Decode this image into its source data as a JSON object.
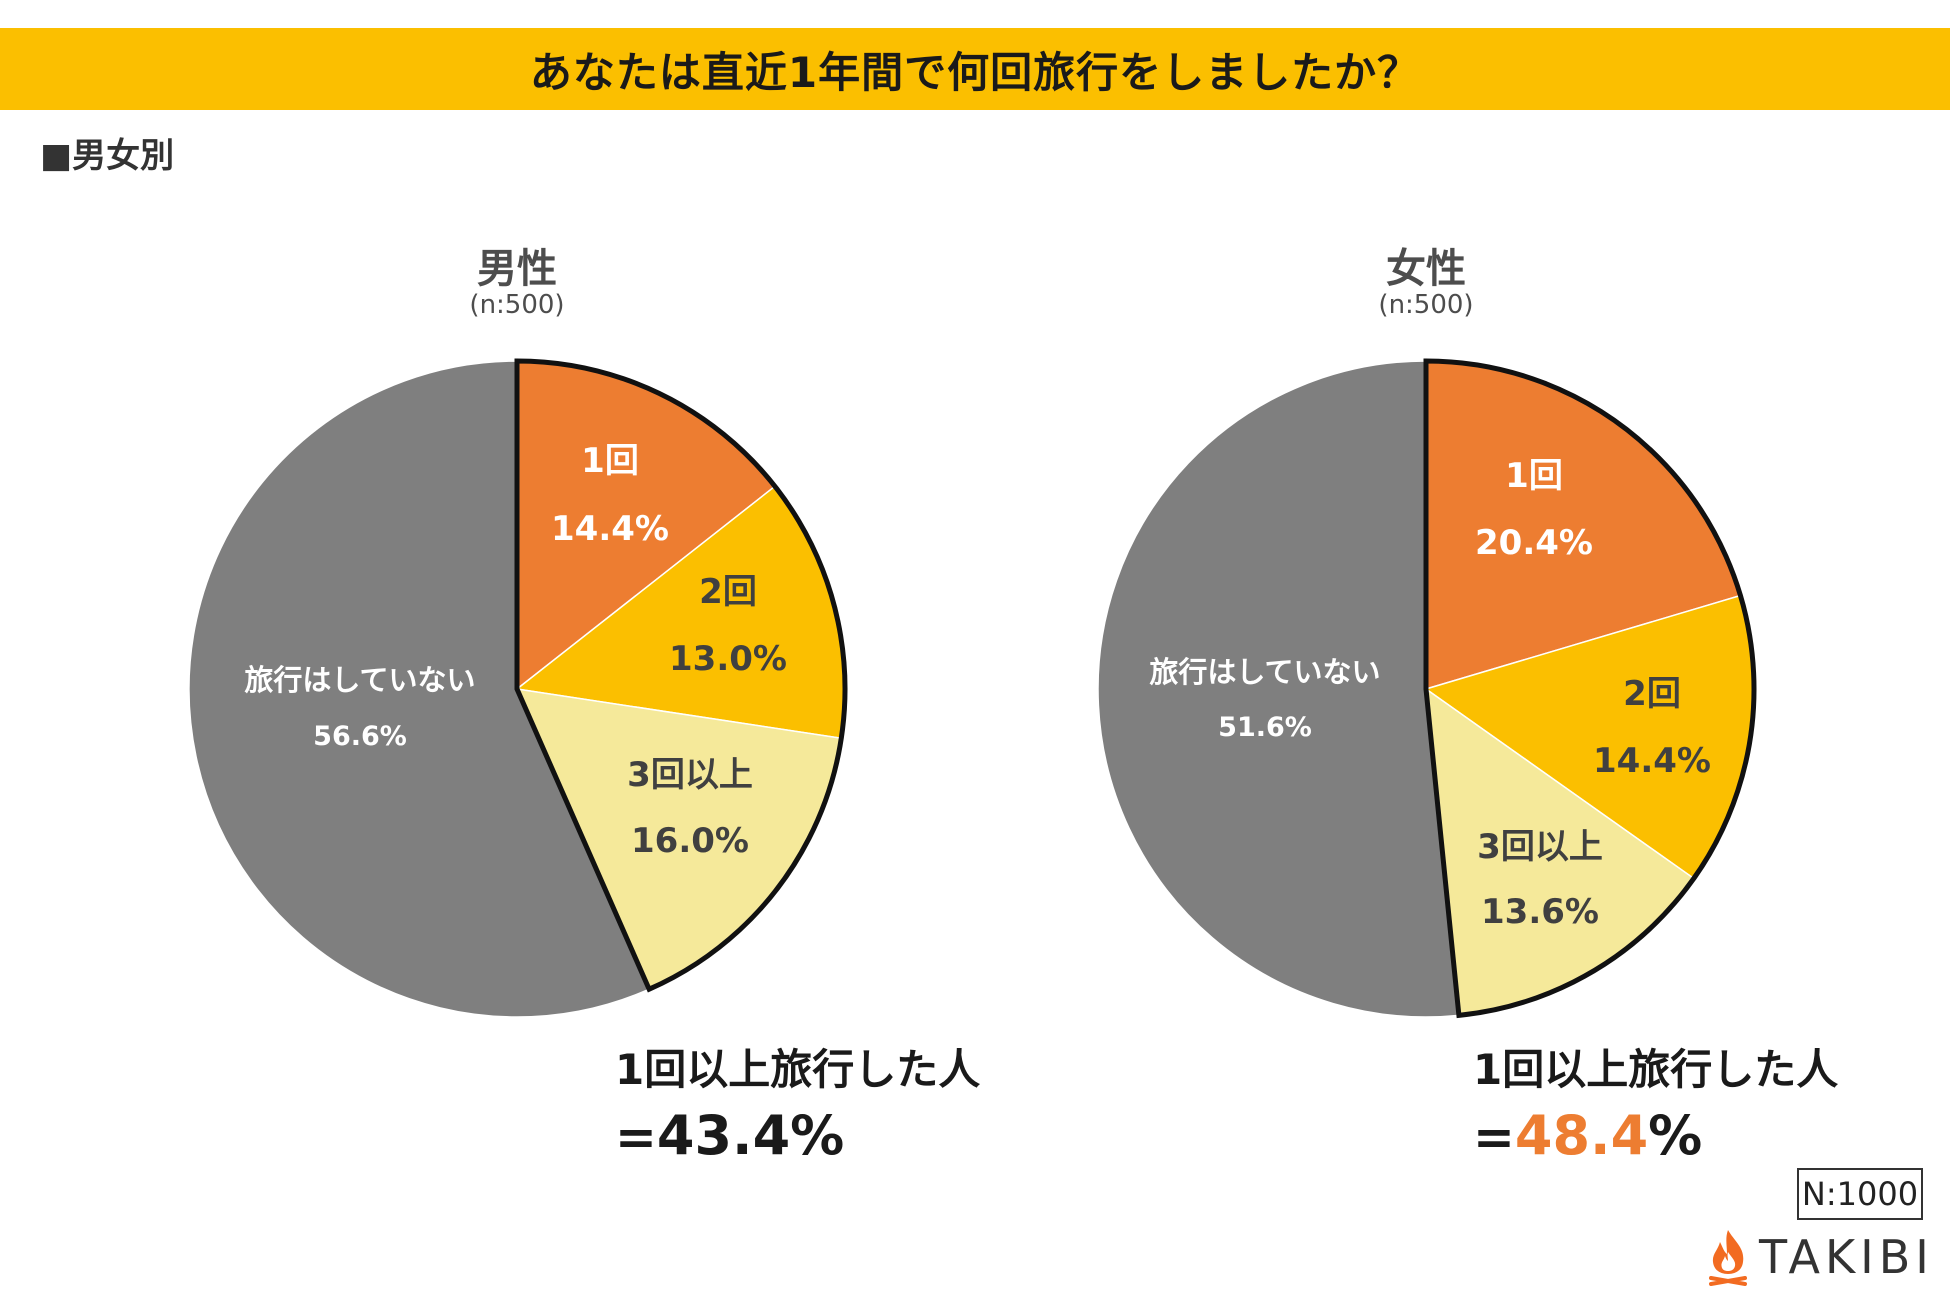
{
  "title": "あなたは直近1年間で何回旅行をしましたか？",
  "section_label": "■男女別",
  "chart_data": [
    {
      "type": "pie",
      "title": "男性",
      "sample": "(n:500)",
      "slices": [
        {
          "label": "1回",
          "value": 14.4,
          "value_text": "14.4%",
          "color": "#ed7d31",
          "text_color": "#ffffff"
        },
        {
          "label": "2回",
          "value": 13.0,
          "value_text": "13.0%",
          "color": "#fbbf00",
          "text_color": "#404040"
        },
        {
          "label": "3回以上",
          "value": 16.0,
          "value_text": "16.0%",
          "color": "#f5e99a",
          "text_color": "#404040"
        },
        {
          "label": "旅行はしていない",
          "value": 56.6,
          "value_text": "56.6%",
          "color": "#7f7f7f",
          "text_color": "#ffffff"
        }
      ],
      "highlight": "1回以上旅行した人",
      "highlight_eq": "=",
      "highlight_value": "43.4",
      "highlight_pct": "%",
      "highlight_color": "#1a1a1a"
    },
    {
      "type": "pie",
      "title": "女性",
      "sample": "(n:500)",
      "slices": [
        {
          "label": "1回",
          "value": 20.4,
          "value_text": "20.4%",
          "color": "#ed7d31",
          "text_color": "#ffffff"
        },
        {
          "label": "2回",
          "value": 14.4,
          "value_text": "14.4%",
          "color": "#fbbf00",
          "text_color": "#404040"
        },
        {
          "label": "3回以上",
          "value": 13.6,
          "value_text": "13.6%",
          "color": "#f5e99a",
          "text_color": "#404040"
        },
        {
          "label": "旅行はしていない",
          "value": 51.6,
          "value_text": "51.6%",
          "color": "#7f7f7f",
          "text_color": "#ffffff"
        }
      ],
      "highlight": "1回以上旅行した人",
      "highlight_eq": "=",
      "highlight_value": "48.4",
      "highlight_pct": "%",
      "highlight_color": "#ed7d31"
    }
  ],
  "footer": {
    "n_total": "N:1000",
    "logo_text": "TAKIBI",
    "logo_icon": "flame-icon",
    "flame_color": "#f26b21"
  }
}
